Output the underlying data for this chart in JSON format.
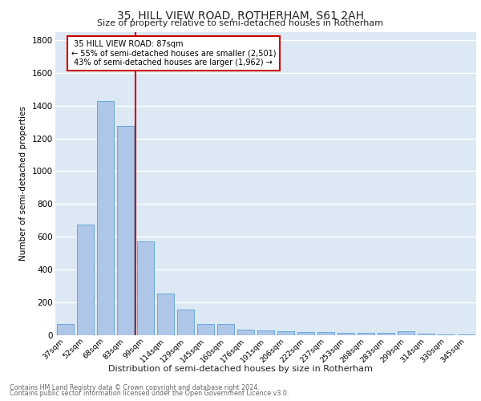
{
  "title1": "35, HILL VIEW ROAD, ROTHERHAM, S61 2AH",
  "title2": "Size of property relative to semi-detached houses in Rotherham",
  "xlabel": "Distribution of semi-detached houses by size in Rotherham",
  "ylabel": "Number of semi-detached properties",
  "footnote1": "Contains HM Land Registry data © Crown copyright and database right 2024.",
  "footnote2": "Contains public sector information licensed under the Open Government Licence v3.0.",
  "bar_labels": [
    "37sqm",
    "52sqm",
    "68sqm",
    "83sqm",
    "99sqm",
    "114sqm",
    "129sqm",
    "145sqm",
    "160sqm",
    "176sqm",
    "191sqm",
    "206sqm",
    "222sqm",
    "237sqm",
    "253sqm",
    "268sqm",
    "283sqm",
    "299sqm",
    "314sqm",
    "330sqm",
    "345sqm"
  ],
  "bar_values": [
    67,
    675,
    1430,
    1275,
    570,
    250,
    155,
    67,
    65,
    32,
    25,
    22,
    18,
    15,
    13,
    12,
    10,
    22,
    5,
    3,
    2
  ],
  "bar_color": "#aec6e8",
  "bar_edge_color": "#5a9fd4",
  "property_label": "35 HILL VIEW ROAD: 87sqm",
  "pct_smaller": 55,
  "n_smaller": 2501,
  "pct_larger": 43,
  "n_larger": 1962,
  "vline_x": 3.5,
  "vline_color": "#cc0000",
  "ylim": [
    0,
    1850
  ],
  "annotation_box_color": "#ffffff",
  "annotation_box_edge": "#cc0000",
  "bg_color": "#dce9f5",
  "grid_color": "#ffffff"
}
